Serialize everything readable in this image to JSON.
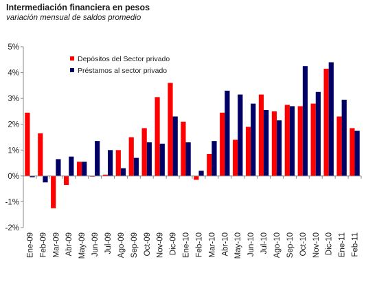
{
  "chart_data": {
    "type": "bar",
    "title": "Intermediación financiera en pesos",
    "subtitle": "variación mensual de saldos promedio",
    "xlabel": "",
    "ylabel": "",
    "ylim": [
      -2,
      5
    ],
    "yticks": [
      5,
      4,
      3,
      2,
      1,
      0,
      -1,
      -2
    ],
    "ytick_labels": [
      "5%",
      "4%",
      "3%",
      "2%",
      "1%",
      "0%",
      "-1%",
      "-2%"
    ],
    "grid": false,
    "legend_position": "top-left",
    "categories": [
      "Ene-09",
      "Feb-09",
      "Mar-09",
      "Abr-09",
      "May-09",
      "Jun-09",
      "Jul-09",
      "Ago-09",
      "Sep-09",
      "Oct-09",
      "Nov-09",
      "Dic-09",
      "Ene-10",
      "Feb-10",
      "Mar-10",
      "Abr-10",
      "May-10",
      "Jun-10",
      "Jul-10",
      "Ago-10",
      "Sep-10",
      "Oct-10",
      "Nov-10",
      "Dic-10",
      "Ene-11",
      "Feb-11"
    ],
    "series": [
      {
        "name": "Depósitos del Sector privado",
        "color": "#ff0000",
        "values": [
          2.45,
          1.65,
          -1.25,
          -0.35,
          0.55,
          0.0,
          0.05,
          1.0,
          1.5,
          1.85,
          3.05,
          3.6,
          2.1,
          -0.15,
          0.85,
          2.45,
          1.4,
          1.9,
          3.15,
          2.5,
          2.75,
          2.7,
          2.8,
          4.15,
          2.3,
          1.85
        ]
      },
      {
        "name": "Préstamos al sector privado",
        "color": "#000066",
        "values": [
          -0.05,
          -0.25,
          0.65,
          0.75,
          0.55,
          1.35,
          1.0,
          0.3,
          0.7,
          1.3,
          1.25,
          2.3,
          1.3,
          0.2,
          1.35,
          3.3,
          3.15,
          2.8,
          2.55,
          2.15,
          2.7,
          4.25,
          3.25,
          4.4,
          2.95,
          1.75
        ]
      }
    ]
  }
}
